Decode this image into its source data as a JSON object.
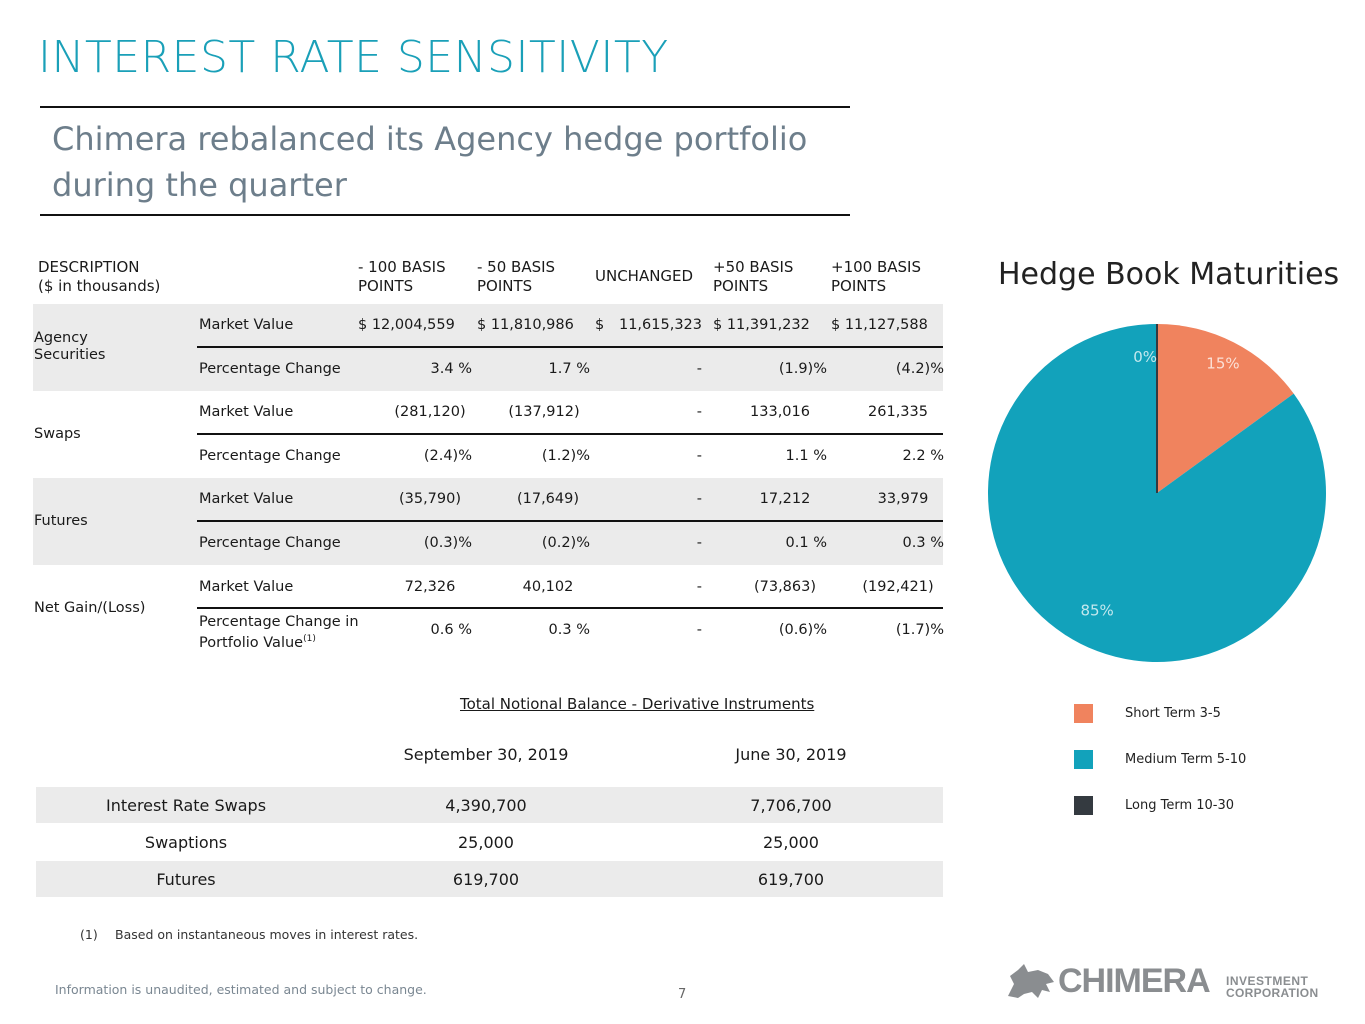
{
  "title": "INTEREST RATE SENSITIVITY",
  "subtitle": "Chimera rebalanced its Agency hedge portfolio during the quarter",
  "sensitivity_table": {
    "headers": {
      "description_line1": "DESCRIPTION",
      "description_line2": "($ in thousands)",
      "minus100_line1": "- 100 BASIS",
      "minus100_line2": "POINTS",
      "minus50_line1": "- 50 BASIS",
      "minus50_line2": "POINTS",
      "unchanged": "UNCHANGED",
      "plus50_line1": "+50 BASIS",
      "plus50_line2": "POINTS",
      "plus100_line1": "+100 BASIS",
      "plus100_line2": "POINTS"
    },
    "groups": [
      {
        "label": "Agency Securities",
        "rows": [
          {
            "metric": "Market Value",
            "m100": "$  12,004,559",
            "m50": "$  11,810,986",
            "unch_sym": "$",
            "unch": "11,615,323",
            "p50": "$  11,391,232",
            "p100": "$  11,127,588"
          },
          {
            "metric": "Percentage Change",
            "m100": "3.4 %",
            "m50": "1.7 %",
            "unch": "-",
            "p50": "(1.9)%",
            "p100": "(4.2)%"
          }
        ]
      },
      {
        "label": "Swaps",
        "rows": [
          {
            "metric": "Market Value",
            "m100": "(281,120)",
            "m50": "(137,912)",
            "unch": "-",
            "p50": "133,016",
            "p100": "261,335"
          },
          {
            "metric": "Percentage Change",
            "m100": "(2.4)%",
            "m50": "(1.2)%",
            "unch": "-",
            "p50": "1.1 %",
            "p100": "2.2 %"
          }
        ]
      },
      {
        "label": "Futures",
        "rows": [
          {
            "metric": "Market Value",
            "m100": "(35,790)",
            "m50": "(17,649)",
            "unch": "-",
            "p50": "17,212",
            "p100": "33,979"
          },
          {
            "metric": "Percentage Change",
            "m100": "(0.3)%",
            "m50": "(0.2)%",
            "unch": "-",
            "p50": "0.1 %",
            "p100": "0.3 %"
          }
        ]
      },
      {
        "label": "Net Gain/(Loss)",
        "rows": [
          {
            "metric": "Market Value",
            "m100": "72,326",
            "m50": "40,102",
            "unch": "-",
            "p50": "(73,863)",
            "p100": "(192,421)"
          },
          {
            "metric_line1": "Percentage Change in",
            "metric_line2": "Portfolio Value",
            "metric_sup": "(1)",
            "m100": "0.6 %",
            "m50": "0.3 %",
            "unch": "-",
            "p50": "(0.6)%",
            "p100": "(1.7)%"
          }
        ]
      }
    ]
  },
  "notional": {
    "title": "Total Notional Balance - Derivative Instruments",
    "col1": "September 30, 2019",
    "col2": "June 30, 2019",
    "rows": [
      {
        "label": "Interest Rate Swaps",
        "v1": "4,390,700",
        "v2": "7,706,700"
      },
      {
        "label": "Swaptions",
        "v1": "25,000",
        "v2": "25,000"
      },
      {
        "label": "Futures",
        "v1": "619,700",
        "v2": "619,700"
      }
    ]
  },
  "footnote": {
    "number": "(1)",
    "text": "Based on instantaneous moves in interest rates."
  },
  "disclaimer": "Information is unaudited, estimated and subject to change.",
  "page_number": "7",
  "logo": {
    "name": "CHIMERA",
    "sub1": "INVESTMENT",
    "sub2": "CORPORATION"
  },
  "chart_data": {
    "type": "pie",
    "title": "Hedge Book Maturities",
    "slices": [
      {
        "name": "Short Term 3-5",
        "value": 15,
        "label": "15%",
        "color": "#f0835e"
      },
      {
        "name": "Medium Term 5-10",
        "value": 85,
        "label": "85%",
        "color": "#12a2bb"
      },
      {
        "name": "Long Term 10-30",
        "value": 0,
        "label": "0%",
        "color": "#343a40"
      }
    ],
    "legend_position": "bottom"
  }
}
